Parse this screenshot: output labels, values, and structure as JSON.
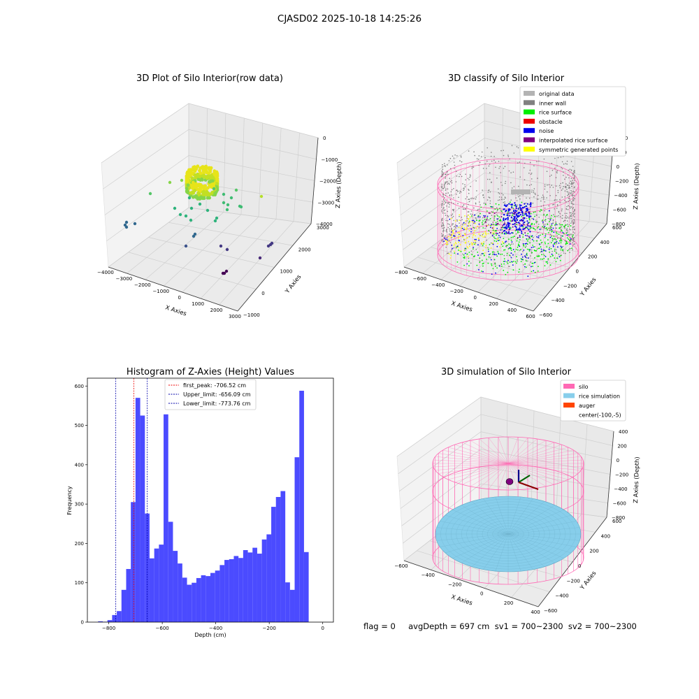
{
  "figure": {
    "suptitle": "CJASD02 2025-10-18 14:25:26",
    "status_line": "flag = 0     avgDepth = 697 cm  sv1 = 700~2300  sv2 = 700~2300"
  },
  "chart_data": [
    {
      "type": "scatter",
      "projection": "3d",
      "title": "3D Plot of Silo Interior(row data)",
      "xlabel": "X Axies",
      "ylabel": "Y Axies",
      "zlabel": "Z Axies (Depth)",
      "x_ticks": [
        "−4000",
        "−3000",
        "−2000",
        "−1000",
        "0",
        "1000",
        "2000",
        "3000"
      ],
      "y_ticks": [
        "−1000",
        "0",
        "1000",
        "2000",
        "3000"
      ],
      "z_ticks": [
        "0",
        "−1000",
        "−2000",
        "−3000",
        "−4000"
      ],
      "xlim": [
        -4000,
        3000
      ],
      "ylim": [
        -1500,
        3500
      ],
      "zlim": [
        -4500,
        500
      ],
      "grid": true,
      "colormap": "viridis (colored by depth)",
      "points_description": "dense ring of points near x≈-300, y≈300, z≈-800 plus sparse outliers"
    },
    {
      "type": "scatter",
      "projection": "3d",
      "title": "3D classify of Silo Interior",
      "xlabel": "X Axies",
      "ylabel": "Y Axies",
      "zlabel": "Z Axies (Depth)",
      "x_ticks": [
        "−800",
        "−600",
        "−400",
        "−200",
        "0",
        "200",
        "400",
        "600"
      ],
      "y_ticks": [
        "−600",
        "−400",
        "−200",
        "0",
        "200",
        "400",
        "600"
      ],
      "z_ticks": [
        "−800",
        "−600",
        "−400",
        "−200",
        "0",
        "200",
        "400"
      ],
      "grid": true,
      "legend_position": "upper-right",
      "legend": [
        {
          "label": "original data",
          "color": "#b3b3b3"
        },
        {
          "label": "inner wall",
          "color": "#808080"
        },
        {
          "label": "rice surface",
          "color": "#00ee00"
        },
        {
          "label": "obstacle",
          "color": "#ee0000"
        },
        {
          "label": "noise",
          "color": "#0000ee"
        },
        {
          "label": "interpolated rice surface",
          "color": "#800080"
        },
        {
          "label": "symmetric generated points",
          "color": "#ffff00"
        }
      ],
      "cylinder_color": "#ff69b4"
    },
    {
      "type": "bar",
      "title": "Histogram of Z-Axies (Height) Values",
      "xlabel": "Depth (cm)",
      "ylabel": "Frequency",
      "xlim": [
        -880,
        40
      ],
      "ylim": [
        0,
        620
      ],
      "x_ticks": [
        -800,
        -600,
        -400,
        -200,
        0
      ],
      "x_tick_labels": [
        "−800",
        "−600",
        "−400",
        "−200",
        "0"
      ],
      "y_ticks": [
        0,
        100,
        200,
        300,
        400,
        500,
        600
      ],
      "bar_color": "#4b4bff",
      "bin_edges": [
        -840,
        -822.5,
        -805,
        -787.5,
        -770,
        -752.5,
        -735,
        -717.5,
        -700,
        -682.5,
        -665,
        -647.5,
        -630,
        -612.5,
        -595,
        -577.5,
        -560,
        -542.5,
        -525,
        -507.5,
        -490,
        -472.5,
        -455,
        -437.5,
        -420,
        -402.5,
        -385,
        -367.5,
        -350,
        -332.5,
        -315,
        -297.5,
        -280,
        -262.5,
        -245,
        -227.5,
        -210,
        -192.5,
        -175,
        -157.5,
        -140,
        -122.5,
        -105,
        -87.5,
        -70,
        -52.5,
        -35,
        -17.5,
        0
      ],
      "values": [
        2,
        1,
        5,
        18,
        28,
        82,
        135,
        305,
        570,
        525,
        276,
        162,
        187,
        197,
        528,
        255,
        181,
        149,
        113,
        95,
        100,
        112,
        119,
        117,
        125,
        131,
        145,
        158,
        160,
        168,
        163,
        183,
        177,
        189,
        174,
        210,
        223,
        293,
        318,
        333,
        101,
        82,
        419,
        588,
        178,
        0,
        0,
        0
      ],
      "vlines": [
        {
          "label": "first_peak: -706.52 cm",
          "x": -706.52,
          "color": "#ee0000"
        },
        {
          "label": "Upper_limit: -656.09 cm",
          "x": -656.09,
          "color": "#0000aa"
        },
        {
          "label": "Lower_limit: -773.76 cm",
          "x": -773.76,
          "color": "#0000aa"
        }
      ],
      "legend_position": "top-center"
    },
    {
      "type": "surface",
      "projection": "3d",
      "title": "3D simulation of Silo Interior",
      "xlabel": "X Axies",
      "ylabel": "Y Axies",
      "zlabel": "Z Axies (Depth)",
      "x_ticks": [
        "−600",
        "−400",
        "−200",
        "0",
        "200",
        "400"
      ],
      "y_ticks": [
        "−600",
        "−400",
        "−200",
        "0",
        "200",
        "400",
        "600"
      ],
      "z_ticks": [
        "−800",
        "−600",
        "−400",
        "−200",
        "0",
        "200",
        "400"
      ],
      "grid": true,
      "legend_position": "upper-right",
      "legend": [
        {
          "label": "silo",
          "color": "#ff69b4"
        },
        {
          "label": "rice simulation",
          "color": "#87ceeb"
        },
        {
          "label": "auger",
          "color": "#ff4500"
        },
        {
          "label": "center(-100,-5)",
          "color": "none"
        }
      ]
    }
  ]
}
